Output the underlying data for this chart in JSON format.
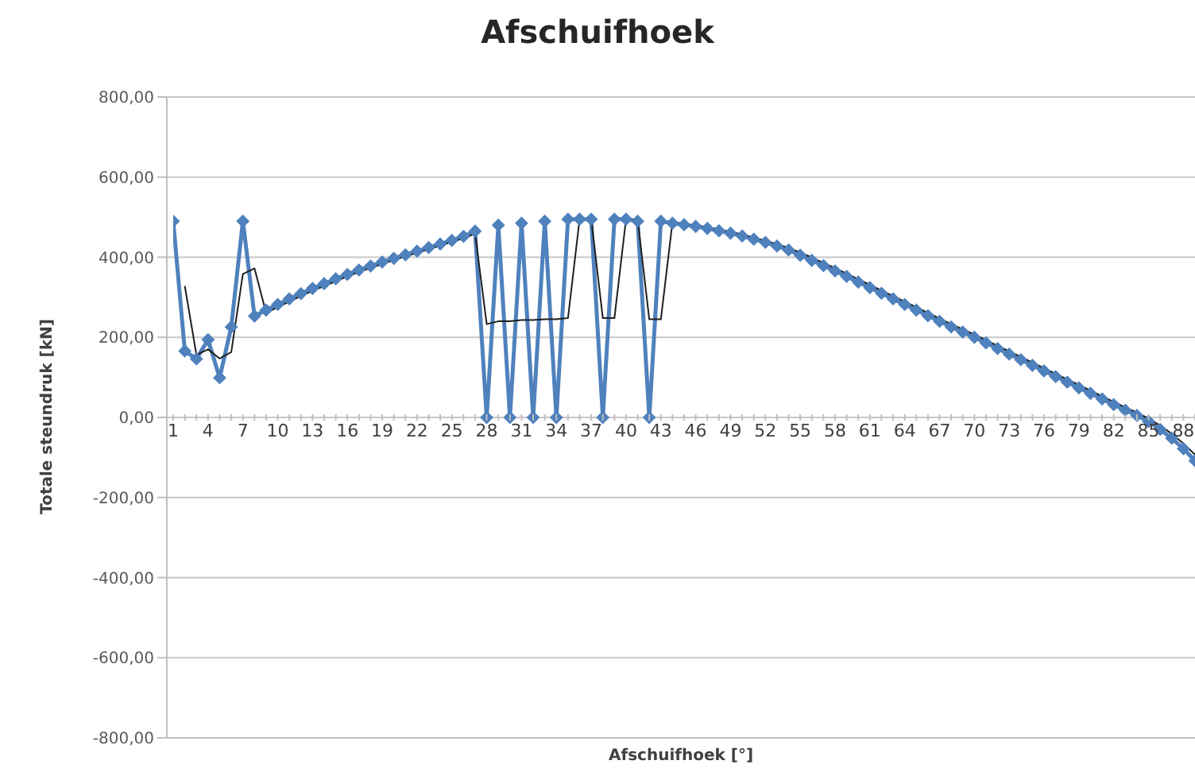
{
  "chart_data": {
    "type": "line",
    "title": "Afschuifhoek",
    "xlabel": "Afschuifhoek [°]",
    "ylabel": "Totale steundruk [kN]",
    "categories": [
      "1",
      null,
      null,
      "4",
      null,
      null,
      "7",
      null,
      null,
      "10",
      null,
      null,
      "13",
      null,
      null,
      "16",
      null,
      null,
      "19",
      null,
      null,
      "22",
      null,
      null,
      "25",
      null,
      null,
      "28",
      null,
      null,
      "31",
      null,
      null,
      "34",
      null,
      null,
      "37",
      null,
      null,
      "40",
      null,
      null,
      "43",
      null,
      null,
      "46",
      null,
      null,
      "49",
      null,
      null,
      "52",
      null,
      null,
      "55",
      null,
      null,
      "58",
      null,
      null,
      "61",
      null,
      null,
      "64",
      null,
      null,
      "67",
      null,
      null,
      "70",
      null,
      null,
      "73",
      null,
      null,
      "76",
      null,
      null,
      "79",
      null,
      null,
      "82",
      null,
      null,
      "85",
      null,
      null,
      "88",
      null
    ],
    "series": [
      {
        "color": "#4f81bd",
        "marker": "diamond",
        "values": [
          490,
          166,
          146,
          194,
          99,
          226,
          490,
          253,
          268,
          282,
          296,
          309,
          322,
          334,
          346,
          357,
          368,
          378,
          388,
          397,
          406,
          415,
          424,
          433,
          442,
          452,
          465,
          0,
          480,
          0,
          485,
          0,
          490,
          0,
          495,
          495,
          495,
          0,
          495,
          495,
          490,
          0,
          490,
          485,
          481,
          477,
          472,
          466,
          460,
          453,
          445,
          437,
          428,
          418,
          405,
          392,
          379,
          366,
          352,
          338,
          324,
          310,
          296,
          282,
          268,
          254,
          240,
          226,
          213,
          200,
          186,
          172,
          158,
          144,
          130,
          116,
          102,
          88,
          74,
          60,
          46,
          32,
          18,
          5,
          -10,
          -30,
          -52,
          -78,
          -108
        ]
      },
      {
        "color": "#1f1f1f",
        "marker": "none",
        "values": [
          null,
          328,
          156,
          170,
          147,
          163,
          358,
          372,
          261,
          275,
          289,
          303,
          316,
          328,
          340,
          352,
          363,
          373,
          383,
          393,
          402,
          411,
          420,
          429,
          438,
          447,
          459,
          233,
          240,
          240,
          243,
          243,
          245,
          245,
          248,
          495,
          495,
          248,
          248,
          495,
          493,
          245,
          245,
          488,
          483,
          479,
          475,
          469,
          463,
          457,
          449,
          441,
          433,
          423,
          412,
          399,
          386,
          373,
          359,
          345,
          331,
          317,
          303,
          289,
          275,
          261,
          247,
          233,
          220,
          207,
          193,
          179,
          165,
          151,
          137,
          123,
          109,
          95,
          81,
          67,
          53,
          39,
          25,
          12,
          -3,
          -20,
          -41,
          -65,
          -93
        ]
      }
    ],
    "ylim": [
      -800,
      800
    ],
    "yticks": [
      {
        "value": -800,
        "label": "-800,00"
      },
      {
        "value": -600,
        "label": "-600,00"
      },
      {
        "value": -400,
        "label": "-400,00"
      },
      {
        "value": -200,
        "label": "-200,00"
      },
      {
        "value": 0,
        "label": "0,00"
      },
      {
        "value": 200,
        "label": "200,00"
      },
      {
        "value": 400,
        "label": "400,00"
      },
      {
        "value": 600,
        "label": "600,00"
      },
      {
        "value": 800,
        "label": "800,00"
      }
    ],
    "grid": "y",
    "legend": false
  }
}
